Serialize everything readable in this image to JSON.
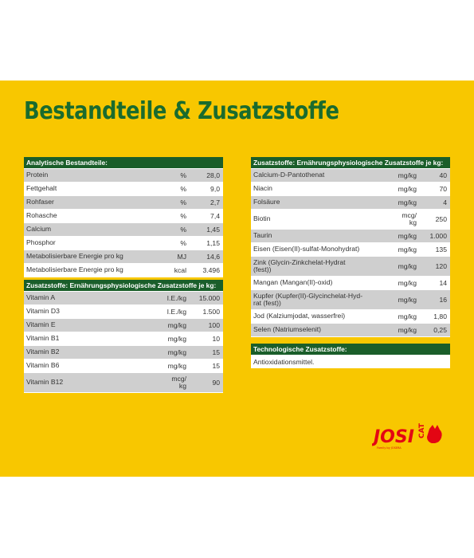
{
  "title": "Bestandteile & Zusatzstoffe",
  "colors": {
    "band": "#f8c700",
    "header": "#1a5e2a",
    "title": "#1a6b2e",
    "logo": "#e30613"
  },
  "analytisch": {
    "header": "Analytische Bestandteile:",
    "rows": [
      {
        "name": "Protein",
        "unit": "%",
        "value": "28,0"
      },
      {
        "name": "Fettgehalt",
        "unit": "%",
        "value": "9,0"
      },
      {
        "name": "Rohfaser",
        "unit": "%",
        "value": "2,7"
      },
      {
        "name": "Rohasche",
        "unit": "%",
        "value": "7,4"
      },
      {
        "name": "Calcium",
        "unit": "%",
        "value": "1,45"
      },
      {
        "name": "Phosphor",
        "unit": "%",
        "value": "1,15"
      },
      {
        "name": "Metabolisierbare Energie pro kg",
        "unit": "MJ",
        "value": "14,6"
      },
      {
        "name": "Metabolisierbare Energie pro kg",
        "unit": "kcal",
        "value": "3.496"
      }
    ]
  },
  "zusatz_links": {
    "header": "Zusatzstoffe: Ernährungsphysiologische Zusatzstoffe je kg:",
    "rows": [
      {
        "name": "Vitamin A",
        "unit": "I.E./kg",
        "value": "15.000"
      },
      {
        "name": "Vitamin D3",
        "unit": "I.E./kg",
        "value": "1.500"
      },
      {
        "name": "Vitamin E",
        "unit": "mg/kg",
        "value": "100"
      },
      {
        "name": "Vitamin B1",
        "unit": "mg/kg",
        "value": "10"
      },
      {
        "name": "Vitamin B2",
        "unit": "mg/kg",
        "value": "15"
      },
      {
        "name": "Vitamin B6",
        "unit": "mg/kg",
        "value": "15"
      },
      {
        "name": "Vitamin B12",
        "unit": "mcg/\nkg",
        "value": "90"
      }
    ]
  },
  "zusatz_rechts": {
    "header": "Zusatzstoffe: Ernährungsphysiologische Zusatzstoffe je kg:",
    "rows": [
      {
        "name": "Calcium-D-Pantothenat",
        "unit": "mg/kg",
        "value": "40"
      },
      {
        "name": "Niacin",
        "unit": "mg/kg",
        "value": "70"
      },
      {
        "name": "Folsäure",
        "unit": "mg/kg",
        "value": "4"
      },
      {
        "name": "Biotin",
        "unit": "mcg/\nkg",
        "value": "250"
      },
      {
        "name": "Taurin",
        "unit": "mg/kg",
        "value": "1.000"
      },
      {
        "name": "Eisen (Eisen(II)-sulfat-Monohydrat)",
        "unit": "mg/kg",
        "value": "135"
      },
      {
        "name": "Zink (Glycin-Zinkchelat-Hydrat\n(fest))",
        "unit": "mg/kg",
        "value": "120"
      },
      {
        "name": "Mangan (Mangan(II)-oxid)",
        "unit": "mg/kg",
        "value": "14"
      },
      {
        "name": "Kupfer (Kupfer(II)-Glycinchelat-Hyd-\nrat (fest))",
        "unit": "mg/kg",
        "value": "16"
      },
      {
        "name": "Jod (Kalziumjodat, wasserfrei)",
        "unit": "mg/kg",
        "value": "1,80"
      },
      {
        "name": "Selen (Natriumselenit)",
        "unit": "mg/kg",
        "value": "0,25"
      }
    ]
  },
  "technologisch": {
    "header": "Technologische Zusatzstoffe:",
    "text": "Antioxidationsmittel."
  },
  "logo": {
    "brand": "JOSI",
    "sub": "CAT",
    "tagline": "Family by JOSERA"
  }
}
